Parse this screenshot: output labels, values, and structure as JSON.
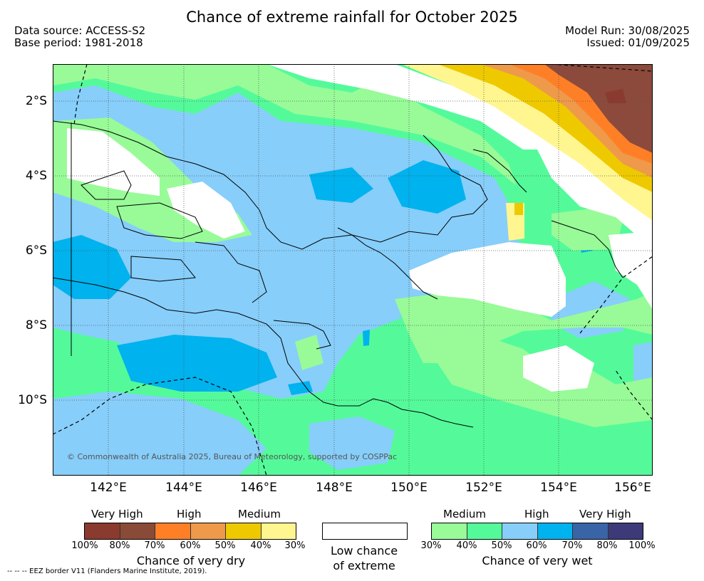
{
  "title": "Chance of extreme rainfall for October 2025",
  "header": {
    "data_source": "Data source: ACCESS-S2",
    "base_period": "Base period: 1981-2018",
    "model_run": "Model Run: 30/08/2025",
    "issued": "Issued: 01/09/2025"
  },
  "axes": {
    "lat_labels": [
      "2°S",
      "4°S",
      "6°S",
      "8°S",
      "10°S"
    ],
    "lon_labels": [
      "142°E",
      "144°E",
      "146°E",
      "148°E",
      "150°E",
      "152°E",
      "154°E",
      "156°E"
    ]
  },
  "copyright": "© Commonwealth of Australia 2025, Bureau of Meteorology, supported by COSPPac",
  "legend": {
    "dry": {
      "categories": [
        "Very High",
        "High",
        "Medium"
      ],
      "colors": [
        "#8b3a2f",
        "#8a4a38",
        "#ff7f27",
        "#ee9a4a",
        "#eec900",
        "#fff68f"
      ],
      "ticks": [
        "100%",
        "80%",
        "70%",
        "60%",
        "50%",
        "40%",
        "30%"
      ],
      "caption": "Chance of very dry"
    },
    "neutral": {
      "color": "#ffffff",
      "caption_line1": "Low chance",
      "caption_line2": "of extreme"
    },
    "wet": {
      "categories": [
        "Medium",
        "High",
        "Very High"
      ],
      "colors": [
        "#98fb98",
        "#54fa9a",
        "#87cefa",
        "#00b2ee",
        "#3a64a8",
        "#3d3a7a"
      ],
      "ticks": [
        "30%",
        "40%",
        "50%",
        "60%",
        "70%",
        "80%",
        "100%"
      ],
      "caption": "Chance of very wet"
    }
  },
  "footnote": "-- -- -- EEZ border V11 (Flanders Marine Institute, 2019).",
  "colors": {
    "light_green": "#98fb98",
    "green": "#54fa9a",
    "light_blue": "#87cefa",
    "blue": "#00b2ee",
    "yellow": "#fff68f",
    "gold": "#eec900",
    "orange_light": "#ee9a4a",
    "orange": "#ff7f27",
    "brown": "#8b4a3c"
  }
}
